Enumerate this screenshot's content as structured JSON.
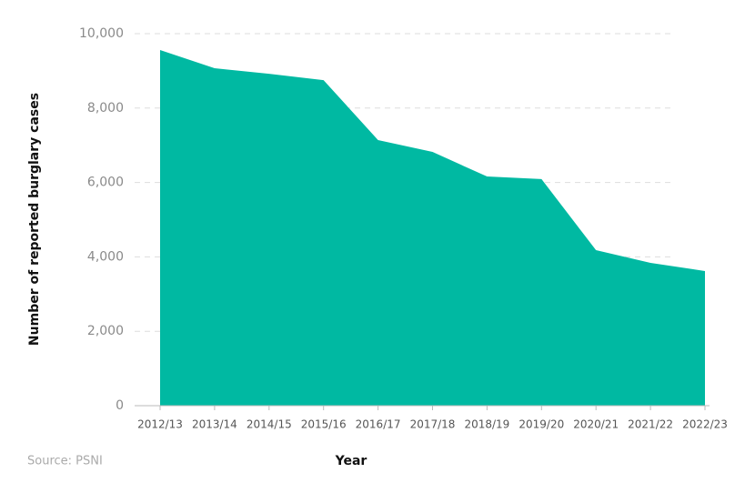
{
  "chart_data": {
    "type": "area",
    "x_label": "Year",
    "y_label": "Number of reported burglary cases",
    "source": "Source: PSNI",
    "categories": [
      "2012/13",
      "2013/14",
      "2014/15",
      "2015/16",
      "2016/17",
      "2017/18",
      "2018/19",
      "2019/20",
      "2020/21",
      "2021/22",
      "2022/23"
    ],
    "values": [
      9560,
      9070,
      8920,
      8750,
      7140,
      6820,
      6160,
      6090,
      4180,
      3840,
      3620
    ],
    "color": "#00b9a2",
    "ylim": [
      0,
      10000
    ],
    "yticks": [
      0,
      {
        "value": 2000,
        "label": "2,000"
      },
      {
        "value": 4000,
        "label": "4,000"
      },
      {
        "value": 6000,
        "label": "6,000"
      },
      {
        "value": 8000,
        "label": "8,000"
      },
      {
        "value": 10000,
        "label": "10,000"
      }
    ],
    "grid": true
  }
}
